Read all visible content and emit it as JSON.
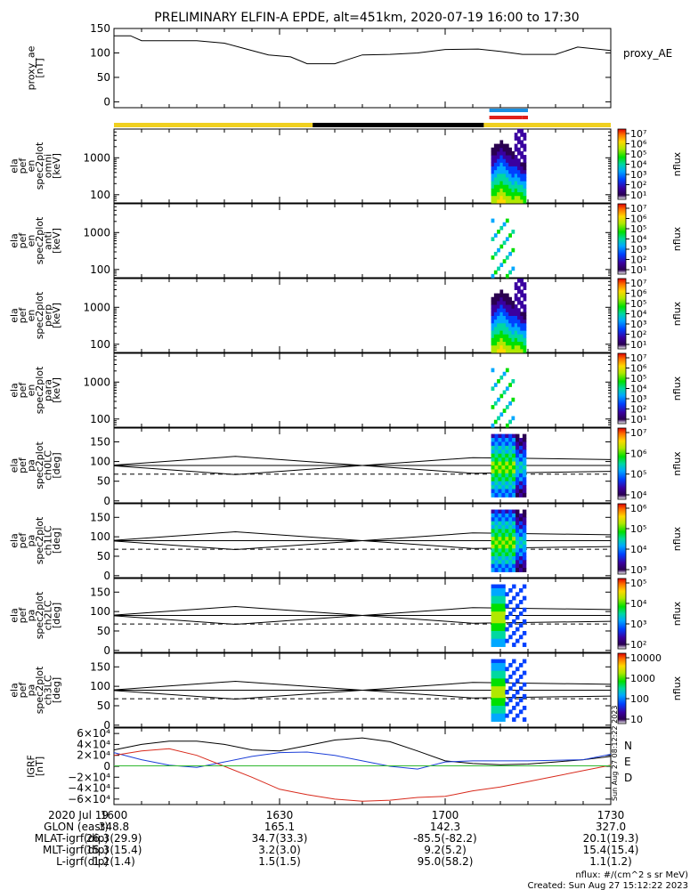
{
  "title": "PRELIMINARY ELFIN-A EPDE, alt=451km, 2020-07-19 16:00 to 17:30",
  "colors": {
    "sunlight": "#f0d020",
    "eclipse": "#000000",
    "science_blue": "#1a8fe0",
    "science_red": "#e0201a",
    "geo_x": "#000000",
    "geo_y": "#1c3fd8",
    "geo_z": "#d82a1c",
    "geo_total": "#2fb82f"
  },
  "panels": [
    {
      "id": "ae",
      "ylabel_lines": [
        "proxy_ae",
        "[nT]"
      ],
      "ticks": [
        "150",
        "100",
        "50",
        "0"
      ],
      "right_label": "proxy_AE"
    },
    {
      "id": "omni",
      "ylabel_lines": [
        "ela",
        "pef",
        "en",
        "spec2plot",
        "omni",
        "[keV]"
      ],
      "ticks": [
        "1000",
        "100"
      ],
      "cb_label": "nflux"
    },
    {
      "id": "anti",
      "ylabel_lines": [
        "ela",
        "pef",
        "en",
        "spec2plot",
        "anti",
        "[keV]"
      ],
      "ticks": [
        "1000",
        "100"
      ],
      "cb_label": "nflux"
    },
    {
      "id": "perp",
      "ylabel_lines": [
        "ela",
        "pef",
        "en",
        "spec2plot",
        "perp",
        "[keV]"
      ],
      "ticks": [
        "1000",
        "100"
      ],
      "cb_label": "nflux"
    },
    {
      "id": "para",
      "ylabel_lines": [
        "ela",
        "pef",
        "en",
        "spec2plot",
        "para",
        "[keV]"
      ],
      "ticks": [
        "1000",
        "100"
      ],
      "cb_label": "nflux"
    },
    {
      "id": "ch0",
      "ylabel_lines": [
        "ela",
        "pef",
        "pa",
        "spec2plot",
        "ch0LC",
        "[deg]"
      ],
      "ticks": [
        "150",
        "100",
        "50",
        "0"
      ],
      "cb_label": "nflux"
    },
    {
      "id": "ch1",
      "ylabel_lines": [
        "ela",
        "pef",
        "pa",
        "spec2plot",
        "ch1LC",
        "[deg]"
      ],
      "ticks": [
        "150",
        "100",
        "50",
        "0"
      ],
      "cb_label": "nflux"
    },
    {
      "id": "ch2",
      "ylabel_lines": [
        "ela",
        "pef",
        "pa",
        "spec2plot",
        "ch2LC",
        "[deg]"
      ],
      "ticks": [
        "150",
        "100",
        "50",
        "0"
      ],
      "cb_label": "nflux"
    },
    {
      "id": "ch3",
      "ylabel_lines": [
        "ela",
        "pef",
        "pa",
        "spec2plot",
        "ch3LC",
        "[deg]"
      ],
      "ticks": [
        "150",
        "100",
        "50",
        "0"
      ],
      "cb_label": "nflux"
    },
    {
      "id": "igrf",
      "ylabel_lines": [
        "IGRF",
        "[nT]"
      ],
      "ticks": [
        "6×10⁴",
        "4×10⁴",
        "2×10⁴",
        "0",
        "−2×10⁴",
        "−4×10⁴",
        "−6×10⁴"
      ],
      "legend": [
        "N",
        "E",
        "D"
      ]
    }
  ],
  "colorbars": [
    {
      "ticks": [
        "10⁷",
        "10⁶",
        "10⁵",
        "10⁴",
        "10³",
        "10²",
        "10¹"
      ]
    },
    {
      "ticks": [
        "10⁷",
        "10⁶",
        "10⁵",
        "10⁴",
        "10³",
        "10²",
        "10¹"
      ]
    },
    {
      "ticks": [
        "10⁷",
        "10⁶",
        "10⁵",
        "10⁴",
        "10³",
        "10²",
        "10¹"
      ]
    },
    {
      "ticks": [
        "10⁷",
        "10⁶",
        "10⁵",
        "10⁴",
        "10³",
        "10²",
        "10¹"
      ]
    },
    {
      "ticks": [
        "10⁷",
        "10⁶",
        "10⁵",
        "10⁴"
      ]
    },
    {
      "ticks": [
        "10⁶",
        "10⁵",
        "10⁴",
        "10³"
      ]
    },
    {
      "ticks": [
        "10⁵",
        "10⁴",
        "10³",
        "10²"
      ]
    },
    {
      "ticks": [
        "10000",
        "1000",
        "100",
        "10"
      ]
    }
  ],
  "chart_data": {
    "type": "line",
    "proxy_ae": {
      "x": [
        "16:00",
        "16:03",
        "16:05",
        "16:15",
        "16:20",
        "16:24",
        "16:28",
        "16:32",
        "16:35",
        "16:40",
        "16:45",
        "16:50",
        "16:55",
        "17:00",
        "17:06",
        "17:10",
        "17:14",
        "17:20",
        "17:24",
        "17:30"
      ],
      "y": [
        135,
        135,
        125,
        125,
        120,
        108,
        96,
        92,
        78,
        78,
        96,
        97,
        100,
        107,
        108,
        103,
        97,
        97,
        112,
        105
      ],
      "ylim": [
        0,
        150
      ]
    },
    "sunlight_bar": [
      {
        "start": "16:00",
        "end": "16:36",
        "state": "sunlight"
      },
      {
        "start": "16:36",
        "end": "17:07",
        "state": "eclipse"
      },
      {
        "start": "17:07",
        "end": "17:30",
        "state": "sunlight"
      }
    ],
    "science_bars": [
      {
        "color": "blue",
        "start": "17:08",
        "end": "17:15"
      },
      {
        "color": "red",
        "start": "17:08",
        "end": "17:14"
      },
      {
        "color": "red",
        "start": "17:14",
        "end": "17:15"
      }
    ],
    "loss_cone_deg": [
      {
        "t": "16:00",
        "val": 89
      },
      {
        "t": "16:22",
        "val": 67
      },
      {
        "t": "16:45",
        "val": 90
      },
      {
        "t": "17:05",
        "val": 110
      },
      {
        "t": "17:15",
        "val": 108
      },
      {
        "t": "17:30",
        "val": 105
      }
    ],
    "igrf_nT": {
      "t": [
        "16:00",
        "16:05",
        "16:10",
        "16:15",
        "16:20",
        "16:25",
        "16:30",
        "16:35",
        "16:40",
        "16:45",
        "16:50",
        "16:55",
        "17:00",
        "17:05",
        "17:10",
        "17:15",
        "17:20",
        "17:25",
        "17:30"
      ],
      "N": [
        30000,
        40000,
        46000,
        46000,
        40000,
        30000,
        28000,
        38000,
        48000,
        52000,
        45000,
        28000,
        10000,
        5000,
        3000,
        4000,
        8000,
        12000,
        18000
      ],
      "E": [
        25000,
        12000,
        2000,
        -2000,
        8000,
        18000,
        25000,
        26000,
        20000,
        10000,
        0,
        -5000,
        8000,
        10000,
        10000,
        10000,
        11000,
        12000,
        22000
      ],
      "D": [
        20000,
        28000,
        32000,
        20000,
        0,
        -20000,
        -42000,
        -52000,
        -60000,
        -64000,
        -62000,
        -57000,
        -55000,
        -45000,
        -38000,
        -28000,
        -18000,
        -8000,
        2000
      ],
      "total": [
        800,
        800,
        800,
        800,
        800,
        800,
        800,
        800,
        800,
        800,
        800,
        800,
        800,
        800,
        800,
        800,
        800,
        800,
        800
      ]
    },
    "ylim_energy_keV": [
      60,
      6000
    ],
    "ylim_pa_deg": [
      0,
      180
    ],
    "ylim_igrf": [
      -70000,
      70000
    ]
  },
  "footer": {
    "rows": [
      {
        "label": "2020 Jul 19",
        "v": [
          "1600",
          "1630",
          "1700",
          "1730"
        ]
      },
      {
        "label": "GLON (east)",
        "v": [
          "348.8",
          "165.1",
          "142.3",
          "327.0"
        ]
      },
      {
        "label": "MLAT-igrf(dip)",
        "v": [
          "26.3(29.9)",
          "34.7(33.3)",
          "-85.5(-82.2)",
          "20.1(19.3)"
        ]
      },
      {
        "label": "MLT-igrf(dip)",
        "v": [
          "15.3(15.4)",
          "3.2(3.0)",
          "9.2(5.2)",
          "15.4(15.4)"
        ]
      },
      {
        "label": "L-igrf(dip)",
        "v": [
          "1.2(1.4)",
          "1.5(1.5)",
          "95.0(58.2)",
          "1.1(1.2)"
        ]
      }
    ],
    "units_note": "nflux: #/(cm^2 s sr MeV)",
    "created": "Created: Sun Aug 27 15:12:22 2023",
    "vertical_stamp": "Sun Aug 27 08:12:22 2023"
  }
}
